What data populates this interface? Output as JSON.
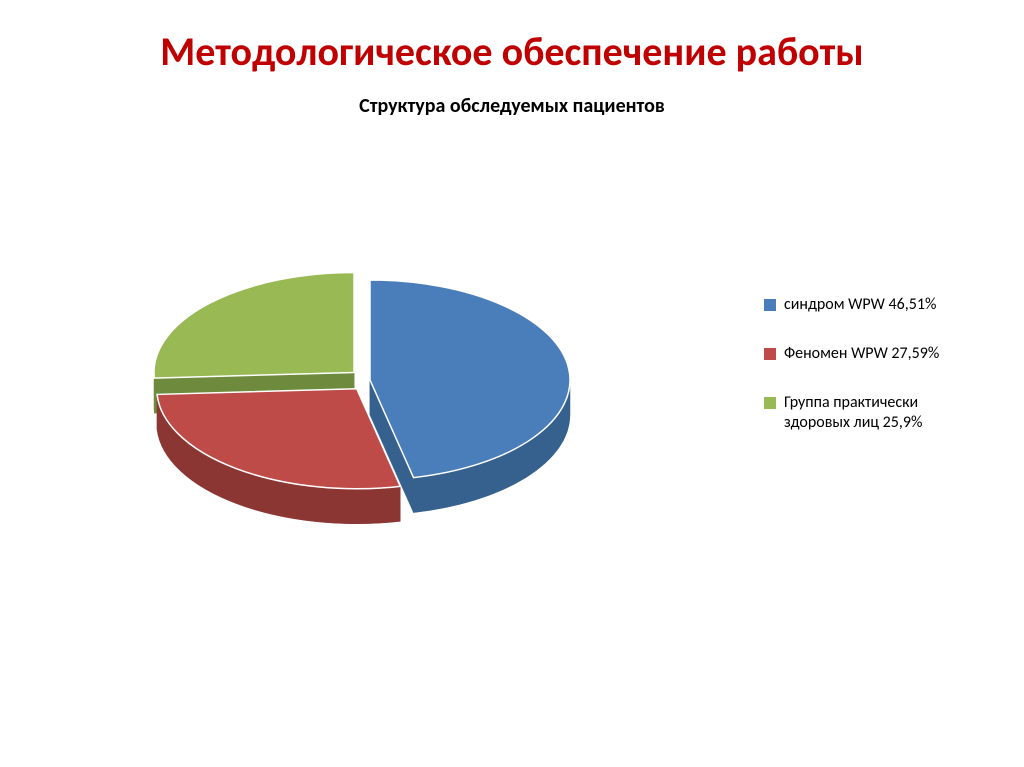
{
  "main_title": "Методологическое обеспечение работы",
  "chart": {
    "type": "pie",
    "title": "Структура обследуемых пациентов",
    "background_color": "#ffffff",
    "title_color": "#c00000",
    "title_fontsize": 40,
    "subtitle_fontsize": 20,
    "slices": [
      {
        "label": "синдром WPW 46,51%",
        "value": 46.51,
        "color_top": "#4a7ebb",
        "color_side": "#36618f",
        "exploded": false
      },
      {
        "label": "Феномен WPW 27,59%",
        "value": 27.59,
        "color_top": "#be4b48",
        "color_side": "#8c3634",
        "exploded": true
      },
      {
        "label": "Группа практически здоровых лиц 25,9%",
        "value": 25.9,
        "color_top": "#98b954",
        "color_side": "#6e8a3c",
        "exploded": true
      }
    ],
    "legend_marker_size": 12,
    "legend_fontsize": 16,
    "depth_3d": 35,
    "tilt_ratio": 0.5
  }
}
